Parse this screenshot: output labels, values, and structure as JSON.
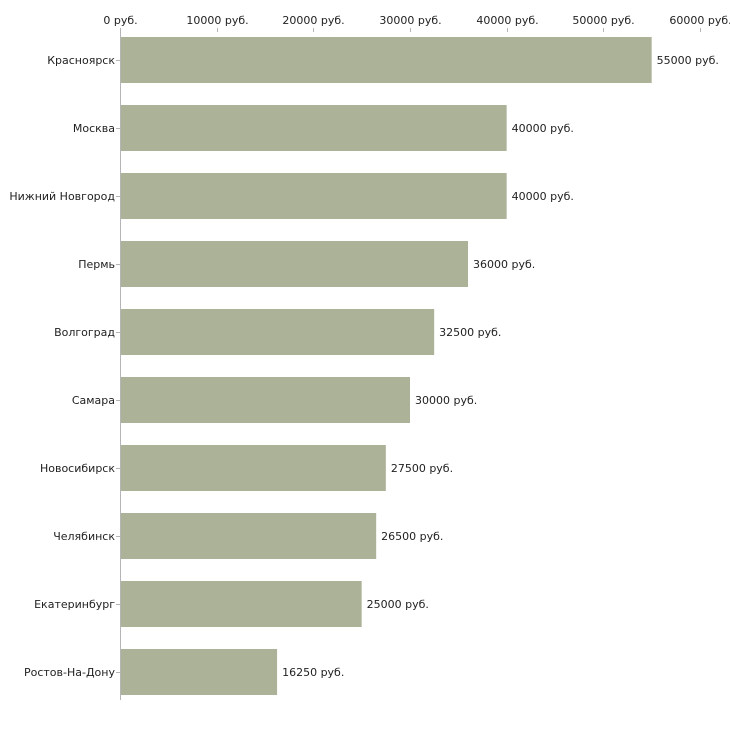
{
  "chart_data": {
    "type": "bar",
    "orientation": "horizontal",
    "title": "",
    "xlabel": "",
    "ylabel": "",
    "xlim": [
      0,
      60000
    ],
    "x_ticks": [
      0,
      10000,
      20000,
      30000,
      40000,
      50000,
      60000
    ],
    "x_tick_labels": [
      "0 руб.",
      "10000 руб.",
      "20000 руб.",
      "30000 руб.",
      "40000 руб.",
      "50000 руб.",
      "60000 руб."
    ],
    "axis_position": "top",
    "grid": false,
    "categories": [
      "Красноярск",
      "Москва",
      "Нижний Новгород",
      "Пермь",
      "Волгоград",
      "Самара",
      "Новосибирск",
      "Челябинск",
      "Екатеринбург",
      "Ростов-На-Дону"
    ],
    "values": [
      55000,
      40000,
      40000,
      36000,
      32500,
      30000,
      27500,
      26500,
      25000,
      16250
    ],
    "value_labels": [
      "55000 руб.",
      "40000 руб.",
      "40000 руб.",
      "36000 руб.",
      "32500 руб.",
      "30000 руб.",
      "27500 руб.",
      "26500 руб.",
      "25000 руб.",
      "16250 руб."
    ],
    "bar_color": "#acb297",
    "axis_color": "#b5b5b5"
  }
}
